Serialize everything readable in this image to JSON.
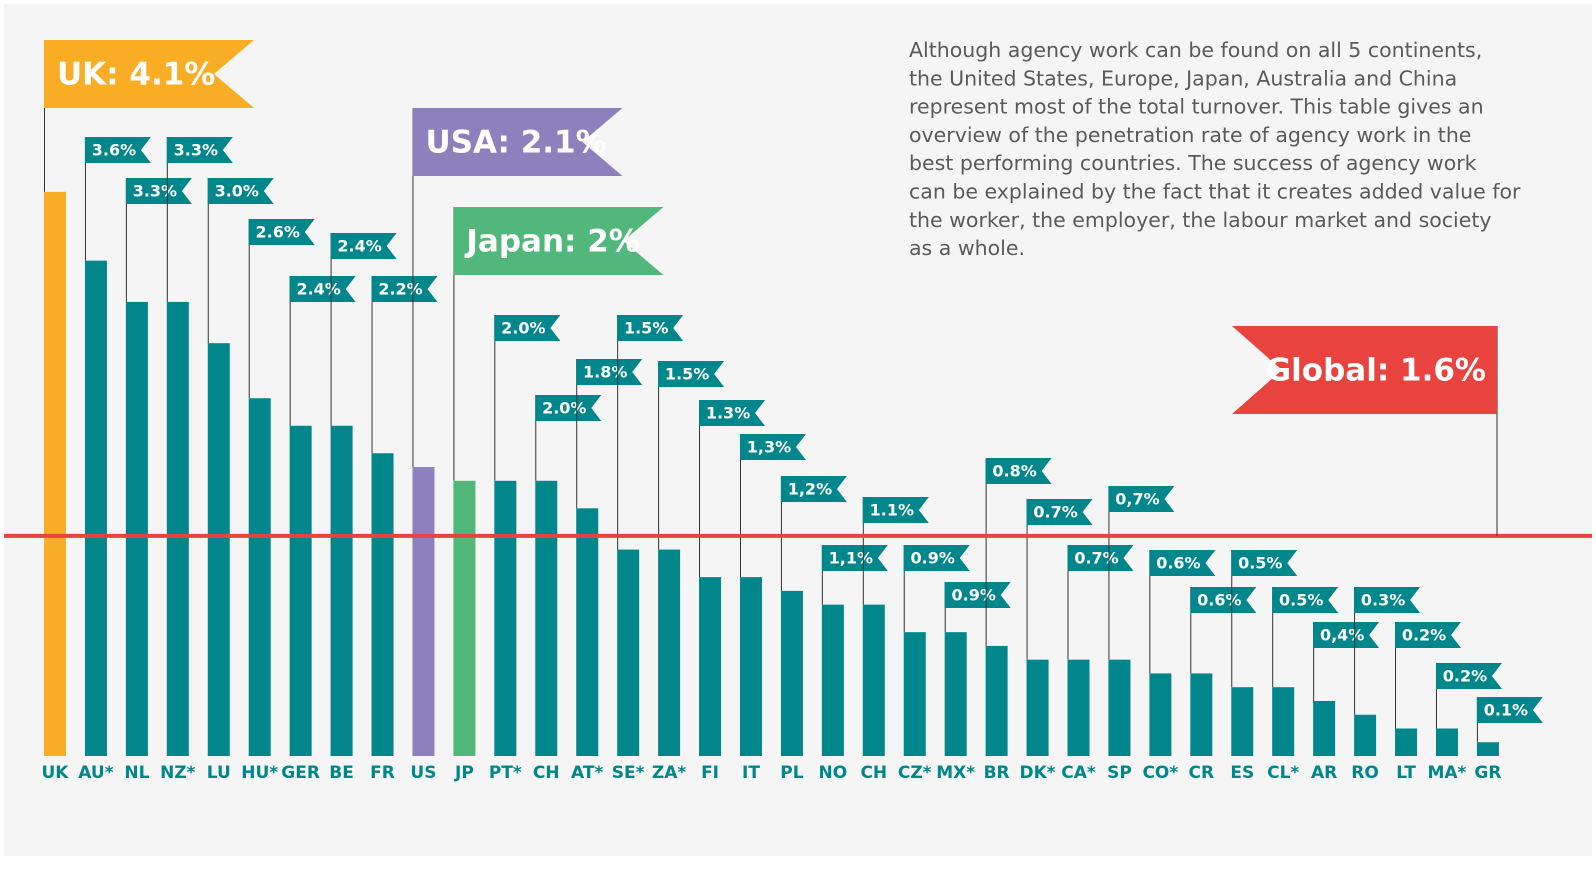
{
  "chart_data": {
    "type": "bar",
    "description": [
      "Although agency work can be found on all 5 continents,",
      "the United States, Europe, Japan, Australia and China",
      "represent most of the total turnover. This table gives an",
      "overview of the penetration rate of agency work in the",
      "best performing countries. The success of agency work",
      "can be explained by the fact that it creates added value for",
      "the worker, the employer, the labour market and society",
      "as a whole."
    ],
    "categories": [
      "UK",
      "AU*",
      "NL",
      "NZ*",
      "LU",
      "HU*",
      "GER",
      "BE",
      "FR",
      "US",
      "JP",
      "PT*",
      "CH",
      "AT*",
      "SE*",
      "ZA*",
      "FI",
      "IT",
      "PL",
      "NO",
      "CH",
      "CZ*",
      "MX*",
      "BR",
      "DK*",
      "CA*",
      "SP",
      "CO*",
      "CR",
      "ES",
      "CL*",
      "AR",
      "RO",
      "LT",
      "MA*",
      "GR"
    ],
    "values": [
      4.1,
      3.6,
      3.3,
      3.3,
      3.0,
      2.6,
      2.4,
      2.4,
      2.2,
      2.1,
      2.0,
      2.0,
      2.0,
      1.8,
      1.5,
      1.5,
      1.3,
      1.3,
      1.2,
      1.1,
      1.1,
      0.9,
      0.9,
      0.8,
      0.7,
      0.7,
      0.7,
      0.6,
      0.6,
      0.5,
      0.5,
      0.4,
      0.3,
      0.2,
      0.2,
      0.1
    ],
    "value_labels": [
      "UK: 4.1%",
      "3.6%",
      "3.3%",
      "3.3%",
      "3.0%",
      "2.6%",
      "2.4%",
      "2.4%",
      "2.2%",
      "USA: 2.1%",
      "Japan: 2%",
      "2.0%",
      "2.0%",
      "1.8%",
      "1.5%",
      "1.5%",
      "1.3%",
      "1,3%",
      "1,2%",
      "1,1%",
      "1.1%",
      "0.9%",
      "0.9%",
      "0.8%",
      "0.7%",
      "0.7%",
      "0,7%",
      "0.6%",
      "0.6%",
      "0.5%",
      "0.5%",
      "0,4%",
      "0.3%",
      "0.2%",
      "0.2%",
      "0.1%"
    ],
    "color": "#00868b",
    "colors": [
      "#f9ad24",
      "#00868b",
      "#00868b",
      "#00868b",
      "#00868b",
      "#00868b",
      "#00868b",
      "#00868b",
      "#00868b",
      "#8e80bd",
      "#52b77b",
      "#00868b",
      "#00868b",
      "#00868b",
      "#00868b",
      "#00868b",
      "#00868b",
      "#00868b",
      "#00868b",
      "#00868b",
      "#00868b",
      "#00868b",
      "#00868b",
      "#00868b",
      "#00868b",
      "#00868b",
      "#00868b",
      "#00868b",
      "#00868b",
      "#00868b",
      "#00868b",
      "#00868b",
      "#00868b",
      "#00868b",
      "#00868b",
      "#00868b"
    ],
    "reference": {
      "value": 1.6,
      "label": "Global: 1.6%",
      "color": "#e8433e"
    }
  }
}
